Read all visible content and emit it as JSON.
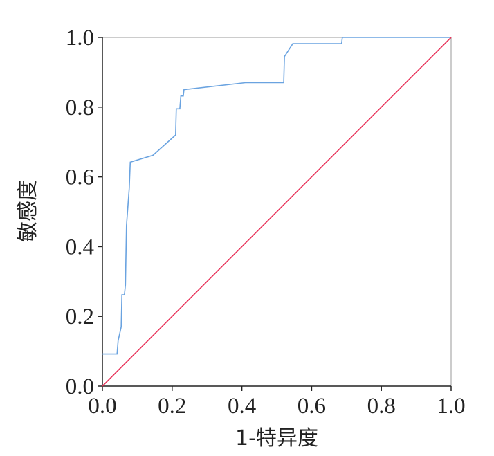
{
  "chart_data": {
    "type": "line",
    "title": "",
    "xlabel": "1-特异度",
    "ylabel": "敏感度",
    "xlim": [
      0,
      1
    ],
    "ylim": [
      0,
      1
    ],
    "x_ticks": [
      "0.0",
      "0.2",
      "0.4",
      "0.6",
      "0.8",
      "1.0"
    ],
    "y_ticks": [
      "0.0",
      "0.2",
      "0.4",
      "0.6",
      "0.8",
      "1.0"
    ],
    "grid": false,
    "legend": "none",
    "series": [
      {
        "color": "#6aa3e0",
        "x": [
          0.0,
          0.042,
          0.045,
          0.054,
          0.056,
          0.063,
          0.066,
          0.069,
          0.077,
          0.08,
          0.145,
          0.21,
          0.212,
          0.222,
          0.225,
          0.232,
          0.234,
          0.41,
          0.52,
          0.522,
          0.546,
          0.686,
          0.688,
          1.0
        ],
        "y": [
          0.092,
          0.092,
          0.13,
          0.17,
          0.262,
          0.262,
          0.29,
          0.46,
          0.568,
          0.642,
          0.662,
          0.72,
          0.795,
          0.795,
          0.832,
          0.832,
          0.85,
          0.87,
          0.87,
          0.945,
          0.982,
          0.982,
          1.0,
          1.0
        ]
      },
      {
        "color": "#e8335a",
        "x": [
          0,
          1
        ],
        "y": [
          0,
          1
        ]
      }
    ]
  }
}
